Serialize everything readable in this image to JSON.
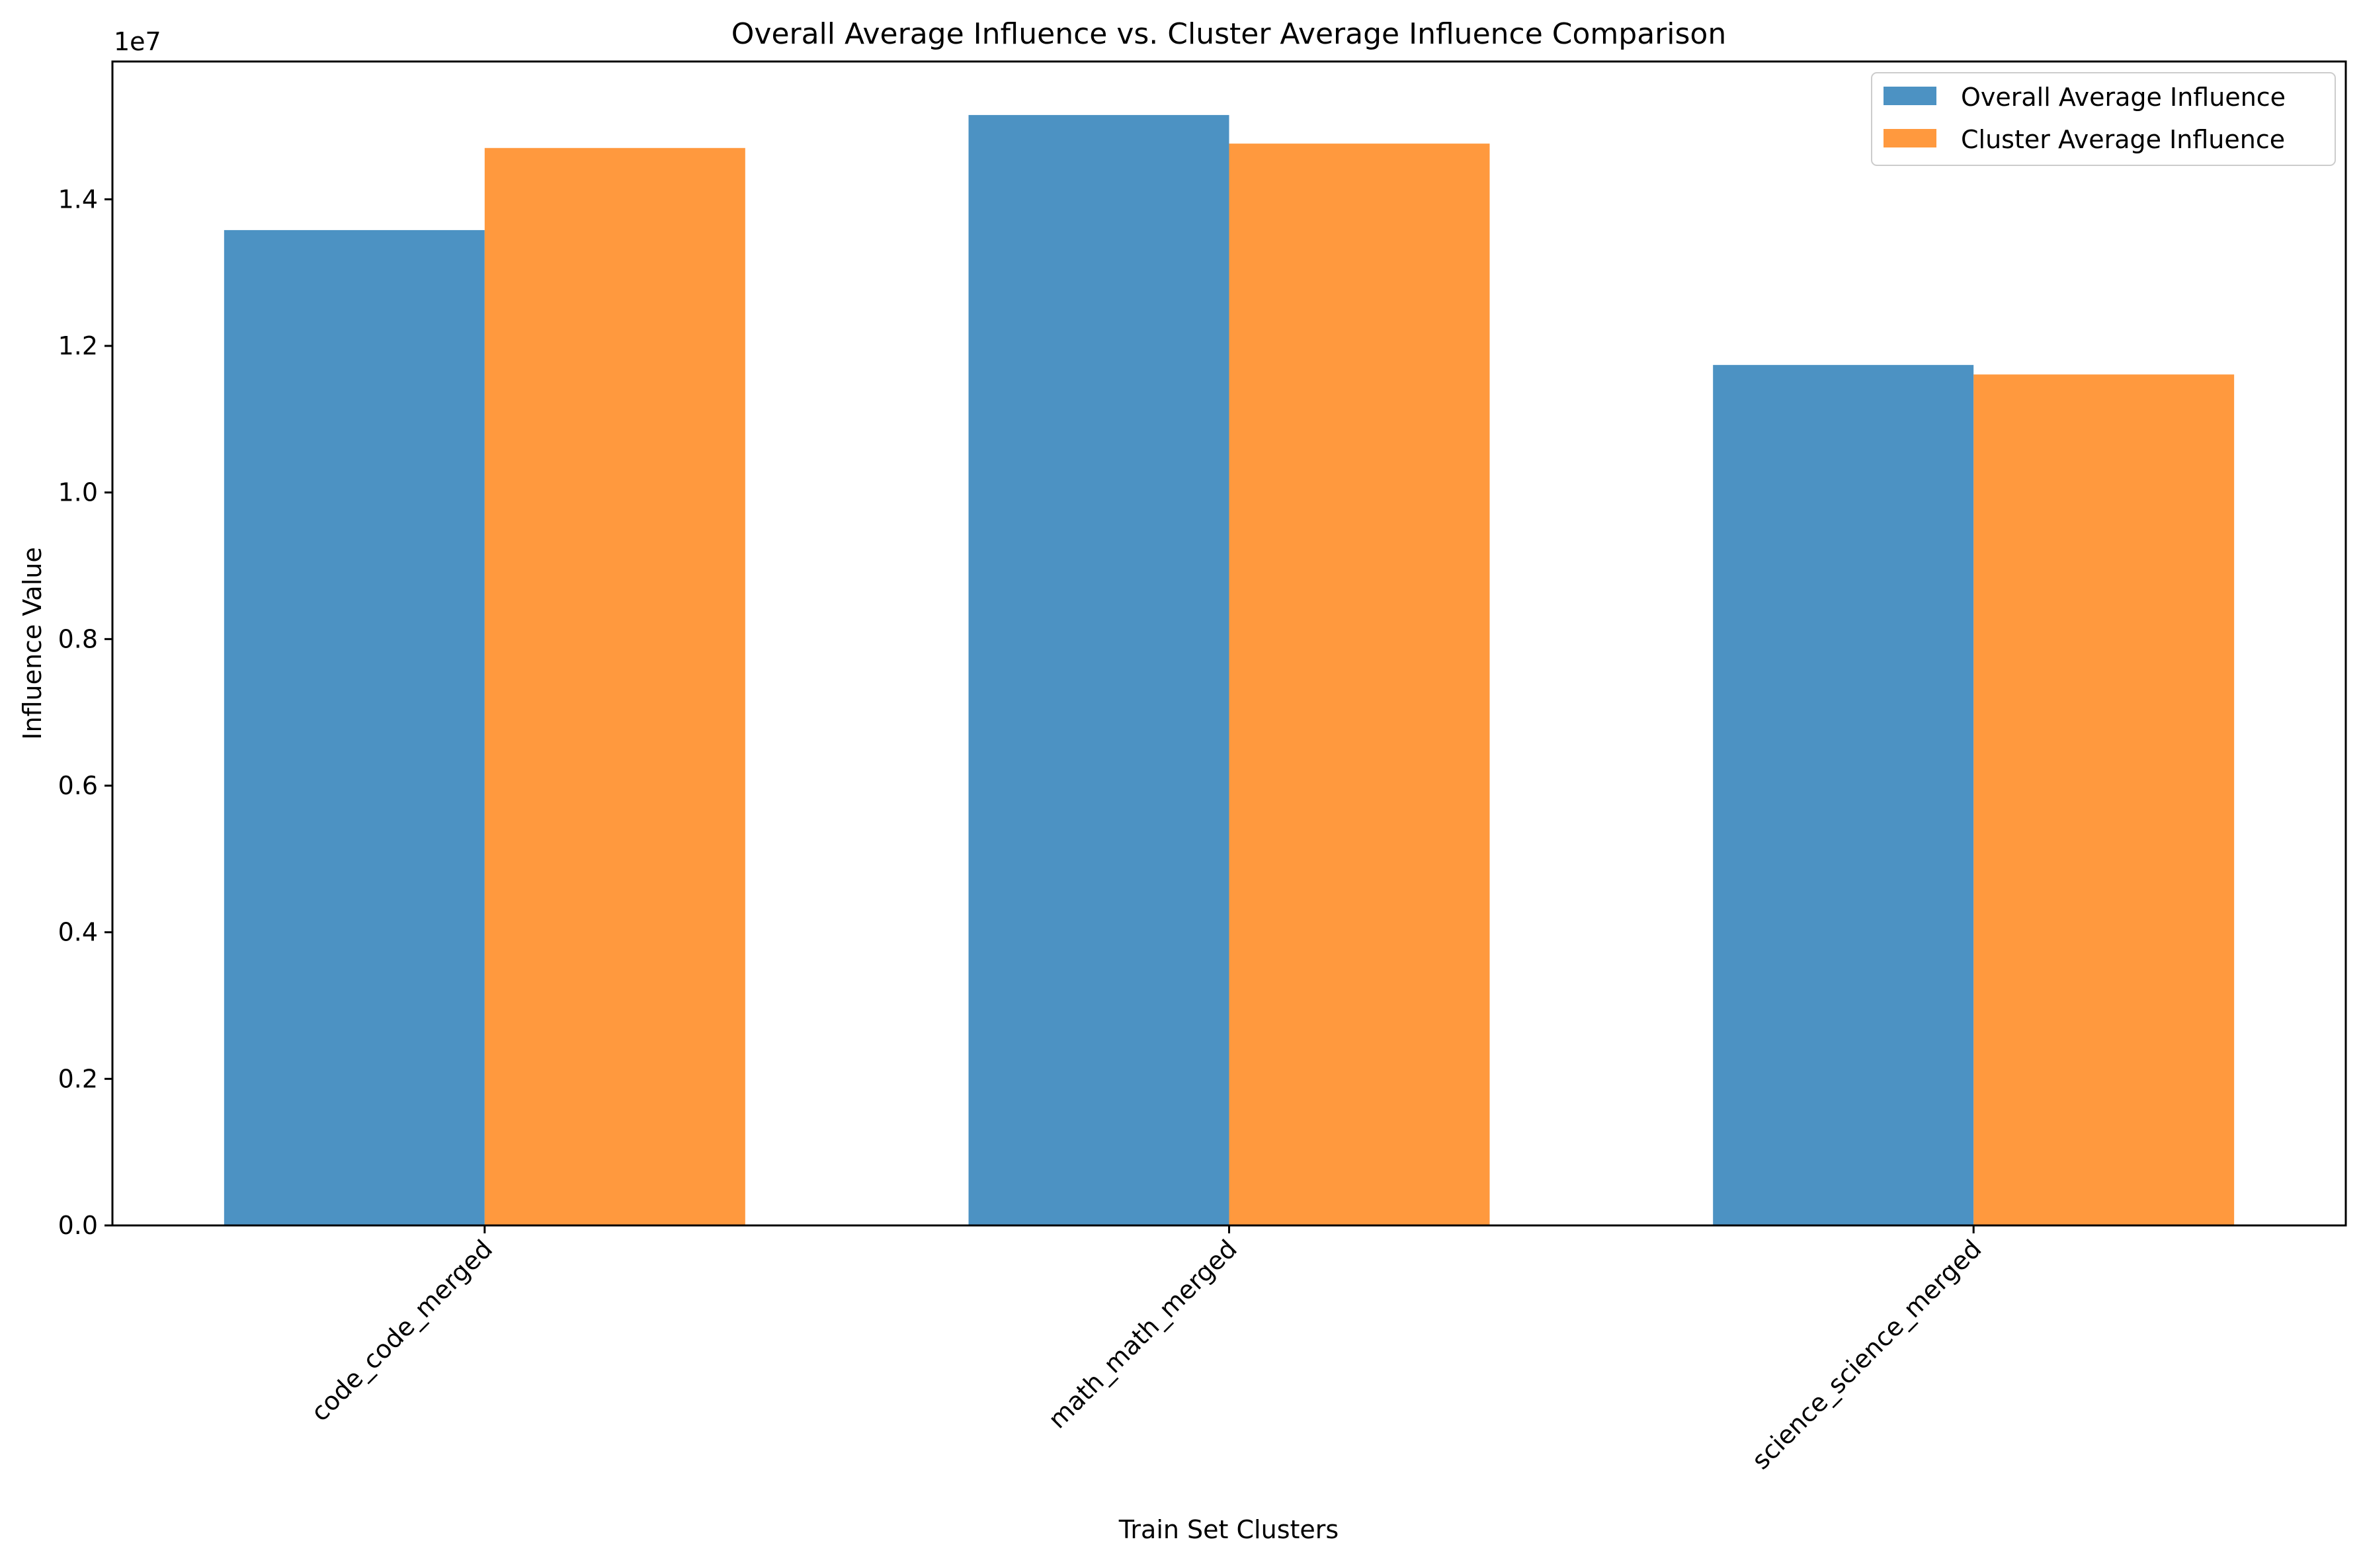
{
  "chart_data": {
    "type": "bar",
    "title": "Overall Average Influence vs. Cluster Average Influence Comparison",
    "xlabel": "Train Set Clusters",
    "ylabel": "Influence Value",
    "offset_label": "1e7",
    "categories": [
      "code_code_merged",
      "math_math_merged",
      "science_science_merged"
    ],
    "series": [
      {
        "name": "Overall Average Influence",
        "color": "#4c92c3",
        "values": [
          13580000,
          15150000,
          11740000
        ]
      },
      {
        "name": "Cluster Average Influence",
        "color": "#ff993e",
        "values": [
          14700000,
          14760000,
          11610000
        ]
      }
    ],
    "ylim": [
      0,
      15880000
    ],
    "yticks": [
      {
        "value": 0,
        "label": "0.0"
      },
      {
        "value": 2000000,
        "label": "0.2"
      },
      {
        "value": 4000000,
        "label": "0.4"
      },
      {
        "value": 6000000,
        "label": "0.6"
      },
      {
        "value": 8000000,
        "label": "0.8"
      },
      {
        "value": 10000000,
        "label": "1.0"
      },
      {
        "value": 12000000,
        "label": "1.2"
      },
      {
        "value": 14000000,
        "label": "1.4"
      }
    ],
    "grid": false,
    "legend_position": "top-right"
  }
}
